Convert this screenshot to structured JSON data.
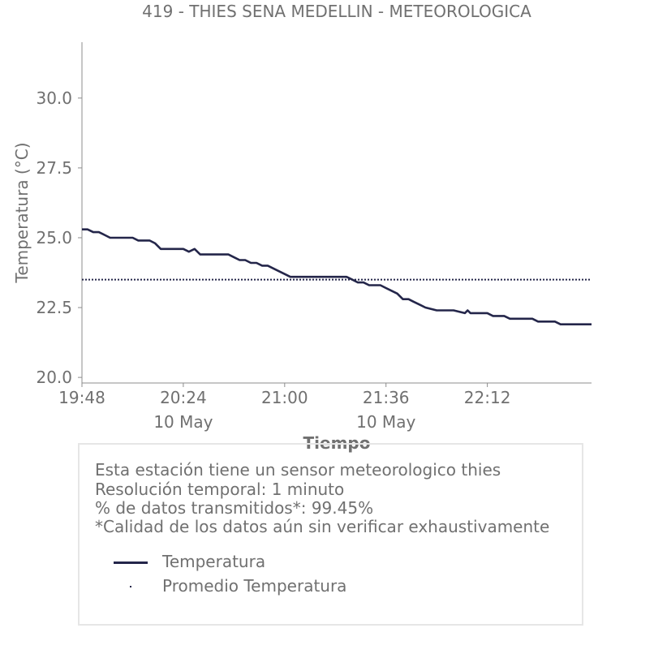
{
  "colors": {
    "series": "#24264a",
    "average": "#24264a",
    "text": "#707070",
    "axis": "#8c8c8c",
    "box_border": "#e6e6e6"
  },
  "chart_data": {
    "type": "line",
    "title": "419 - THIES SENA MEDELLIN - METEOROLOGICA",
    "xlabel": "Tiempo",
    "ylabel": "Temperatura (°C)",
    "ylim": [
      19.8,
      32.0
    ],
    "xlim": [
      "19:48",
      "22:49"
    ],
    "yticks": [
      "20.0",
      "22.5",
      "25.0",
      "27.5",
      "30.0"
    ],
    "xticks": [
      {
        "time": "19:48",
        "label": "19:48",
        "sublabel": ""
      },
      {
        "time": "20:24",
        "label": "20:24",
        "sublabel": "10 May"
      },
      {
        "time": "21:00",
        "label": "21:00",
        "sublabel": ""
      },
      {
        "time": "21:36",
        "label": "21:36",
        "sublabel": "10 May"
      },
      {
        "time": "22:12",
        "label": "22:12",
        "sublabel": ""
      }
    ],
    "grid": false,
    "series": [
      {
        "name": "Temperatura",
        "style": "solid",
        "x": [
          "19:48",
          "19:50",
          "19:52",
          "19:54",
          "19:56",
          "19:58",
          "20:00",
          "20:02",
          "20:06",
          "20:08",
          "20:12",
          "20:14",
          "20:16",
          "20:18",
          "20:22",
          "20:24",
          "20:26",
          "20:28",
          "20:30",
          "20:32",
          "20:34",
          "20:40",
          "20:42",
          "20:44",
          "20:46",
          "20:48",
          "20:50",
          "20:52",
          "20:54",
          "20:58",
          "21:00",
          "21:02",
          "21:06",
          "21:22",
          "21:24",
          "21:26",
          "21:28",
          "21:30",
          "21:34",
          "21:36",
          "21:38",
          "21:40",
          "21:42",
          "21:44",
          "21:46",
          "21:48",
          "21:50",
          "21:54",
          "21:56",
          "22:00",
          "22:04",
          "22:05",
          "22:06",
          "22:12",
          "22:14",
          "22:18",
          "22:20",
          "22:28",
          "22:30",
          "22:32",
          "22:36",
          "22:38",
          "22:40",
          "22:42",
          "22:49"
        ],
        "y": [
          25.3,
          25.3,
          25.2,
          25.2,
          25.1,
          25.0,
          25.0,
          25.0,
          25.0,
          24.9,
          24.9,
          24.8,
          24.6,
          24.6,
          24.6,
          24.6,
          24.5,
          24.6,
          24.4,
          24.4,
          24.4,
          24.4,
          24.3,
          24.2,
          24.2,
          24.1,
          24.1,
          24.0,
          24.0,
          23.8,
          23.7,
          23.6,
          23.6,
          23.6,
          23.5,
          23.4,
          23.4,
          23.3,
          23.3,
          23.2,
          23.1,
          23.0,
          22.8,
          22.8,
          22.7,
          22.6,
          22.5,
          22.4,
          22.4,
          22.4,
          22.3,
          22.4,
          22.3,
          22.3,
          22.2,
          22.2,
          22.1,
          22.1,
          22.0,
          22.0,
          22.0,
          21.9,
          21.9,
          21.9,
          21.9
        ]
      },
      {
        "name": "Promedio Temperatura",
        "style": "dotted",
        "x": [
          "19:48",
          "22:49"
        ],
        "y": [
          23.5,
          23.5
        ]
      }
    ]
  },
  "info": {
    "lines": [
      "Esta estación tiene un sensor meteorologico thies",
      "Resolución temporal: 1 minuto",
      "% de datos transmitidos*: 99.45%",
      "*Calidad de los datos aún sin verificar exhaustivamente"
    ],
    "legend": [
      {
        "label": "Temperatura",
        "marker": "line"
      },
      {
        "label": "Promedio Temperatura",
        "marker": "dot"
      }
    ]
  }
}
